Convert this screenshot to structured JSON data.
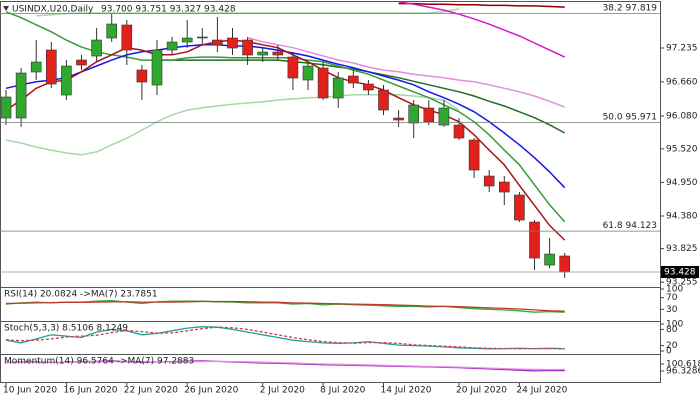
{
  "chart_data": [
    {
      "type": "candlestick",
      "title": "USINDX,U20,Daily",
      "ohlc_text": "93.700 93.751 93.327 93.428",
      "categories": [
        "10 Jun 2020",
        null,
        null,
        null,
        "16 Jun 2020",
        null,
        null,
        null,
        "22 Jun 2020",
        null,
        null,
        null,
        "26 Jun 2020",
        null,
        null,
        null,
        null,
        "2 Jul 2020",
        null,
        null,
        null,
        "8 Jul 2020",
        null,
        null,
        null,
        "14 Jul 2020",
        null,
        null,
        null,
        null,
        "20 Jul 2020",
        null,
        null,
        null,
        "24 Jul 2020",
        null,
        null,
        null
      ],
      "open": [
        96.045,
        96.045,
        96.827,
        97.201,
        96.436,
        97.031,
        97.099,
        97.405,
        97.626,
        96.861,
        96.606,
        97.201,
        97.337,
        97.405,
        97.371,
        97.405,
        97.371,
        97.116,
        97.167,
        97.082,
        96.691,
        96.895,
        96.385,
        96.759,
        96.623,
        96.521,
        96.045,
        95.96,
        96.215,
        95.926,
        95.926,
        95.671,
        95.059,
        94.957,
        94.736,
        94.277,
        93.546,
        93.7
      ],
      "high": [
        96.521,
        96.895,
        97.371,
        97.337,
        97.031,
        97.116,
        97.575,
        97.813,
        97.711,
        96.946,
        97.371,
        97.422,
        97.711,
        97.575,
        97.762,
        97.575,
        97.422,
        97.235,
        97.286,
        97.167,
        96.997,
        96.997,
        96.827,
        96.861,
        96.691,
        96.606,
        96.181,
        96.351,
        96.351,
        96.351,
        96.045,
        95.705,
        95.161,
        95.059,
        94.787,
        94.311,
        94.005,
        93.751
      ],
      "low": [
        95.926,
        95.892,
        96.691,
        96.555,
        96.351,
        96.861,
        96.997,
        97.337,
        96.946,
        96.351,
        96.436,
        97.116,
        97.235,
        97.286,
        97.167,
        97.116,
        96.946,
        96.997,
        97.031,
        96.521,
        96.521,
        96.351,
        96.215,
        96.555,
        96.436,
        96.096,
        95.892,
        95.705,
        95.926,
        95.892,
        95.671,
        95.025,
        94.787,
        94.566,
        94.277,
        93.461,
        93.495,
        93.327
      ],
      "close": [
        96.402,
        96.81,
        96.997,
        96.623,
        96.929,
        96.946,
        97.371,
        97.643,
        97.201,
        96.657,
        97.201,
        97.337,
        97.405,
        97.422,
        97.286,
        97.235,
        97.116,
        97.167,
        97.116,
        96.725,
        96.929,
        96.385,
        96.725,
        96.64,
        96.521,
        96.181,
        96.011,
        96.266,
        95.977,
        96.215,
        95.705,
        95.161,
        94.889,
        94.787,
        94.311,
        93.665,
        93.733,
        93.428
      ],
      "up_color": "#2ea82e",
      "down_color": "#e3201b",
      "overlays": [
        {
          "color": "#a6d8a6",
          "values": [
            null,
            null,
            97.78,
            97.8,
            97.82,
            97.83,
            97.83,
            97.83,
            97.83,
            97.83,
            97.83,
            97.83,
            97.83,
            97.83,
            97.83,
            97.83,
            97.83,
            97.83,
            97.83,
            97.83,
            97.83,
            97.83,
            97.83,
            97.83,
            97.83,
            97.83,
            97.83,
            97.83,
            97.83,
            97.85,
            97.9,
            null,
            null,
            null,
            null,
            null,
            null,
            null
          ]
        },
        {
          "color": "#a6d8a6",
          "values": [
            95.67,
            95.62,
            95.55,
            95.5,
            95.45,
            95.42,
            95.47,
            95.59,
            95.7,
            95.84,
            95.98,
            96.1,
            96.18,
            96.22,
            96.25,
            96.28,
            96.3,
            96.32,
            96.35,
            96.37,
            96.39,
            96.4,
            96.42,
            96.44,
            96.44,
            96.44,
            96.44,
            96.42,
            96.39,
            96.35,
            96.18,
            null,
            null,
            null,
            null,
            null,
            null,
            null
          ]
        },
        {
          "color": "#8b0000",
          "values": [
            null,
            null,
            null,
            null,
            null,
            null,
            null,
            null,
            null,
            null,
            null,
            null,
            null,
            null,
            null,
            null,
            null,
            null,
            null,
            null,
            null,
            null,
            null,
            null,
            null,
            null,
            97.99,
            97.99,
            97.98,
            97.98,
            97.97,
            97.97,
            97.96,
            97.96,
            97.95,
            97.95,
            97.94,
            97.93
          ]
        },
        {
          "color": "#e38ce0",
          "values": [
            null,
            null,
            null,
            null,
            null,
            null,
            null,
            null,
            null,
            null,
            null,
            null,
            null,
            null,
            null,
            null,
            97.41,
            97.34,
            97.29,
            97.24,
            97.17,
            97.1,
            97.03,
            96.98,
            96.91,
            96.86,
            96.83,
            96.79,
            96.76,
            96.73,
            96.69,
            96.66,
            96.61,
            96.55,
            96.49,
            96.42,
            96.33,
            96.23
          ]
        },
        {
          "color": "#d417c8",
          "values": [
            null,
            null,
            null,
            null,
            null,
            null,
            null,
            null,
            null,
            null,
            null,
            null,
            null,
            null,
            null,
            null,
            null,
            null,
            null,
            null,
            null,
            null,
            null,
            null,
            null,
            null,
            98.02,
            97.98,
            97.93,
            97.88,
            97.81,
            97.73,
            97.64,
            97.54,
            97.44,
            97.32,
            97.2,
            97.08
          ]
        },
        {
          "color": "#1f6e1f",
          "values": [
            null,
            null,
            null,
            null,
            null,
            null,
            null,
            null,
            null,
            null,
            97.03,
            97.03,
            97.03,
            97.03,
            97.03,
            97.03,
            97.03,
            97.03,
            97.03,
            97.0,
            96.98,
            96.95,
            96.91,
            96.88,
            96.83,
            96.78,
            96.73,
            96.67,
            96.61,
            96.55,
            96.49,
            96.42,
            96.33,
            96.25,
            96.15,
            96.05,
            95.93,
            95.79
          ]
        },
        {
          "color": "#3a9a3a",
          "values": [
            97.85,
            97.75,
            97.63,
            97.51,
            97.37,
            97.25,
            97.17,
            97.12,
            97.08,
            97.03,
            97.03,
            97.03,
            97.07,
            97.08,
            97.08,
            97.07,
            97.07,
            97.07,
            97.07,
            97.07,
            97.03,
            97.0,
            96.93,
            96.86,
            96.79,
            96.69,
            96.59,
            96.49,
            96.39,
            96.27,
            96.15,
            95.98,
            95.76,
            95.5,
            95.25,
            94.91,
            94.57,
            94.28
          ]
        },
        {
          "color": "#1515f0",
          "values": [
            96.55,
            96.61,
            96.66,
            96.69,
            96.73,
            96.83,
            96.93,
            97.03,
            97.12,
            97.17,
            97.2,
            97.24,
            97.27,
            97.29,
            97.29,
            97.27,
            97.27,
            97.24,
            97.2,
            97.15,
            97.1,
            97.03,
            96.96,
            96.9,
            96.83,
            96.76,
            96.69,
            96.61,
            96.49,
            96.39,
            96.28,
            96.15,
            95.98,
            95.79,
            95.59,
            95.37,
            95.13,
            94.86
          ]
        },
        {
          "color": "#a51515",
          "values": [
            96.18,
            96.35,
            96.55,
            96.66,
            96.69,
            96.83,
            97.0,
            97.12,
            97.24,
            97.2,
            97.12,
            97.12,
            97.17,
            97.29,
            97.34,
            97.37,
            97.34,
            97.29,
            97.24,
            97.12,
            97.0,
            96.86,
            96.73,
            96.66,
            96.61,
            96.52,
            96.39,
            96.27,
            96.18,
            96.1,
            95.98,
            95.76,
            95.5,
            95.25,
            94.9,
            94.56,
            94.22,
            93.97
          ]
        }
      ],
      "levels": [
        {
          "ratio": "38.2",
          "value": 97.819
        },
        {
          "ratio": "50.0",
          "value": 95.971
        },
        {
          "ratio": "61.8",
          "value": 94.123
        }
      ],
      "ylim": [
        93.19,
        98.0
      ],
      "yticks": [
        97.235,
        {
          "value": 96.66,
          "label": "96.660"
        },
        {
          "value": 96.08,
          "label": "96.080"
        },
        {
          "value": 95.52,
          "label": "95.520"
        },
        {
          "value": 94.95,
          "label": "94.950"
        },
        {
          "value": 94.38,
          "label": "94.380"
        },
        93.825,
        93.255
      ]
    },
    {
      "type": "line",
      "label": "RSI(14) 20.0824 ->MA(7) 23.7851",
      "series": [
        {
          "color": "#3aa83a",
          "values": [
            48,
            52,
            55,
            52,
            55,
            55,
            58,
            60,
            55,
            50,
            56,
            58,
            58,
            58,
            56,
            55,
            52,
            52,
            52,
            48,
            50,
            45,
            48,
            46,
            44,
            42,
            40,
            40,
            38,
            40,
            36,
            32,
            30,
            28,
            25,
            20,
            22,
            20.0824
          ]
        },
        {
          "color": "#c0392b",
          "values": [
            50,
            51,
            52,
            53,
            54,
            54,
            55,
            56,
            56,
            55,
            55,
            55,
            56,
            57,
            57,
            57,
            56,
            55,
            54,
            52,
            51,
            50,
            49,
            48,
            47,
            46,
            44,
            43,
            41,
            40,
            39,
            37,
            35,
            33,
            31,
            28,
            25,
            23.7851
          ]
        }
      ],
      "ylim": [
        0,
        100
      ],
      "yticks": [
        100,
        70,
        30
      ]
    },
    {
      "type": "line",
      "label": "Stoch(5,3,3) 8.5106 8.1249",
      "series": [
        {
          "color": "#20a0a0",
          "values": [
            40,
            30,
            45,
            60,
            55,
            50,
            70,
            80,
            75,
            60,
            65,
            75,
            85,
            90,
            88,
            80,
            70,
            60,
            50,
            40,
            35,
            30,
            28,
            30,
            35,
            28,
            22,
            20,
            18,
            15,
            12,
            10,
            8,
            9,
            10,
            9,
            10,
            8.5106
          ]
        },
        {
          "color": "#d04040",
          "dashed": true,
          "values": [
            42,
            38,
            40,
            45,
            52,
            55,
            58,
            68,
            76,
            72,
            66,
            67,
            75,
            83,
            88,
            86,
            80,
            70,
            60,
            50,
            42,
            35,
            31,
            29,
            31,
            31,
            28,
            23,
            20,
            18,
            15,
            12,
            10,
            9,
            9,
            9,
            9,
            8.1249
          ]
        }
      ],
      "ylim": [
        0,
        100
      ],
      "yticks": [
        100,
        80,
        20,
        0
      ]
    },
    {
      "type": "line",
      "label": "Momentum(14) 96.5764 ->MA(7) 97.2883",
      "series": [
        {
          "color": "#a020c0",
          "values": [
            101.5,
            101.8,
            102,
            101.5,
            101.8,
            102,
            102.2,
            102.5,
            102,
            101.5,
            101.8,
            102,
            102.3,
            102.5,
            102.2,
            101.8,
            101.5,
            101.2,
            101,
            100.8,
            100.5,
            100.2,
            100,
            99.8,
            99.6,
            99.4,
            99.2,
            99,
            98.8,
            98.6,
            98.4,
            98,
            97.6,
            97.2,
            96.8,
            96.4,
            96.6,
            96.5764
          ]
        },
        {
          "color": "#e08ce0",
          "values": [
            101.4,
            101.5,
            101.7,
            101.7,
            101.7,
            101.8,
            101.9,
            102,
            102.1,
            102,
            101.9,
            101.9,
            102,
            102.1,
            102.2,
            102.1,
            101.9,
            101.7,
            101.4,
            101.2,
            100.9,
            100.6,
            100.4,
            100.2,
            100,
            99.8,
            99.5,
            99.3,
            99.1,
            98.9,
            98.7,
            98.4,
            98.1,
            97.8,
            97.5,
            97.3,
            97.2,
            97.2883
          ]
        }
      ],
      "ylim": [
        90.2,
        105.5
      ],
      "yticks": [
        100.6185,
        96.3286
      ]
    }
  ]
}
